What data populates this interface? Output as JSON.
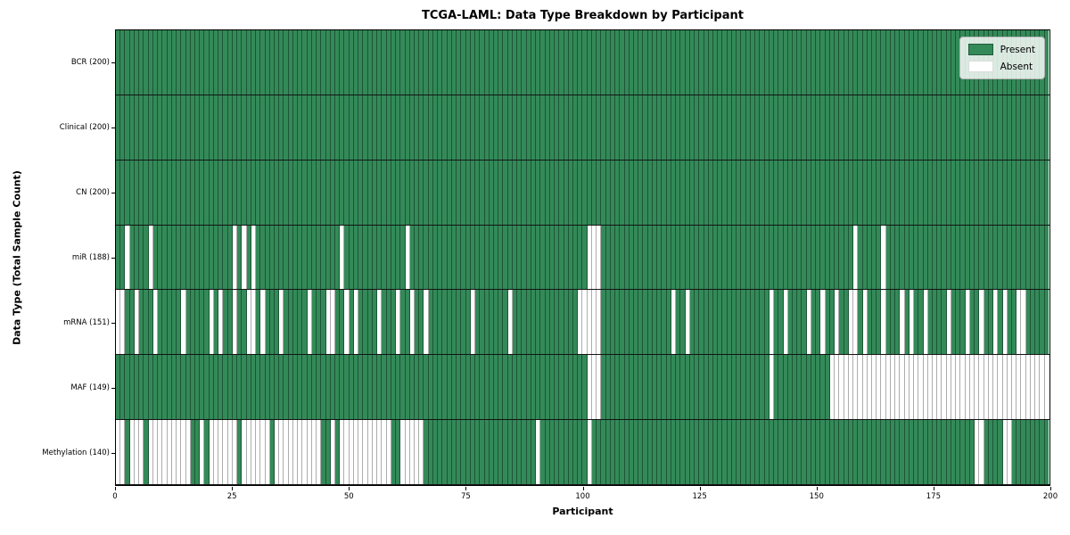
{
  "title": "TCGA-LAML: Data Type Breakdown by Participant",
  "xlabel": "Participant",
  "ylabel": "Data Type (Total Sample Count)",
  "legend": {
    "present_label": "Present",
    "absent_label": "Absent"
  },
  "colors": {
    "present": "#338a58",
    "absent": "#ffffff"
  },
  "chart_data": {
    "type": "heatmap",
    "x_axis": {
      "label": "Participant",
      "ticks": [
        0,
        25,
        50,
        75,
        100,
        125,
        150,
        175,
        200
      ],
      "range": [
        0,
        200
      ]
    },
    "n_participants": 200,
    "legend_entries": [
      "Present",
      "Absent"
    ],
    "rows": [
      {
        "label": "BCR (200)",
        "data_type": "BCR",
        "present_count": 200,
        "absent_participants": []
      },
      {
        "label": "Clinical (200)",
        "data_type": "Clinical",
        "present_count": 200,
        "absent_participants": []
      },
      {
        "label": "CN (200)",
        "data_type": "CN",
        "present_count": 200,
        "absent_participants": []
      },
      {
        "label": "miR (188)",
        "data_type": "miR",
        "present_count": 188,
        "absent_participants": [
          2,
          7,
          25,
          27,
          29,
          48,
          62,
          101,
          102,
          103,
          158,
          164
        ]
      },
      {
        "label": "mRNA (151)",
        "data_type": "mRNA",
        "present_count": 151,
        "absent_participants": [
          0,
          1,
          4,
          8,
          14,
          20,
          22,
          25,
          28,
          29,
          31,
          35,
          41,
          45,
          46,
          49,
          51,
          56,
          60,
          63,
          66,
          76,
          84,
          99,
          100,
          101,
          102,
          103,
          119,
          122,
          140,
          143,
          148,
          151,
          154,
          157,
          158,
          160,
          164,
          168,
          170,
          173,
          178,
          182,
          185,
          188,
          190,
          193,
          194
        ]
      },
      {
        "label": "MAF (149)",
        "data_type": "MAF",
        "present_count": 149,
        "absent_participants": [
          101,
          102,
          103,
          140,
          153,
          154,
          155,
          156,
          157,
          158,
          159,
          160,
          161,
          162,
          163,
          164,
          165,
          166,
          167,
          168,
          169,
          170,
          171,
          172,
          173,
          174,
          175,
          176,
          177,
          178,
          179,
          180,
          181,
          182,
          183,
          184,
          185,
          186,
          187,
          188,
          189,
          190,
          191,
          192,
          193,
          194,
          195,
          196,
          197,
          198,
          199
        ]
      },
      {
        "label": "Methylation (140)",
        "data_type": "Methylation",
        "present_count": 140,
        "absent_participants": [
          0,
          1,
          3,
          4,
          5,
          7,
          8,
          9,
          10,
          11,
          12,
          13,
          14,
          15,
          18,
          20,
          21,
          22,
          23,
          24,
          25,
          27,
          28,
          29,
          30,
          31,
          32,
          34,
          35,
          36,
          37,
          38,
          39,
          40,
          41,
          42,
          43,
          46,
          48,
          49,
          50,
          51,
          52,
          53,
          54,
          55,
          56,
          57,
          58,
          61,
          62,
          63,
          64,
          65,
          90,
          101,
          184,
          185,
          190,
          191
        ]
      }
    ]
  }
}
